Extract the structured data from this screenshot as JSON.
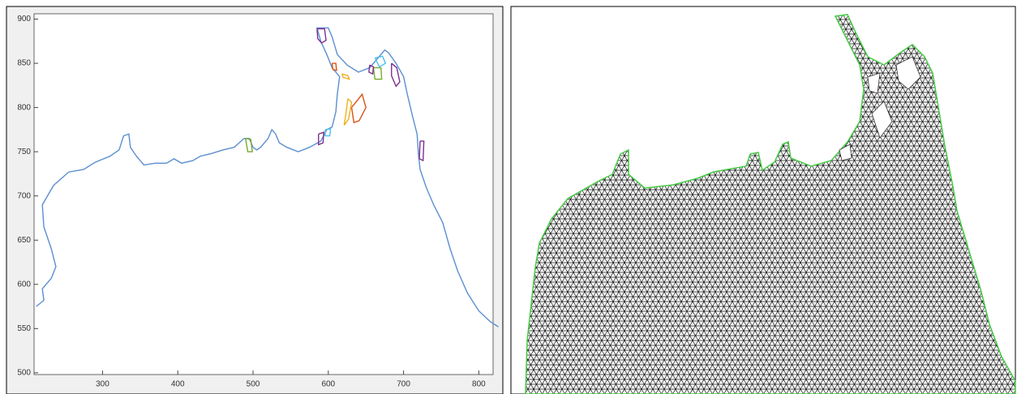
{
  "chart_data": {
    "type": "line",
    "xlim": [
      209,
      819
    ],
    "ylim": [
      498,
      906
    ],
    "xticks": [
      300,
      400,
      500,
      600,
      700,
      800
    ],
    "yticks": [
      500,
      550,
      600,
      650,
      700,
      750,
      800,
      850,
      900
    ],
    "series": [
      {
        "color": "#5b8fd1",
        "x": [
          212,
          222,
          220,
          232,
          238,
          232,
          222,
          220,
          235,
          255,
          275,
          290,
          310,
          322,
          328,
          335,
          337,
          345,
          355,
          370,
          385,
          395,
          405,
          420,
          430,
          445,
          460,
          475,
          488,
          495,
          500,
          505,
          510,
          520,
          525,
          530,
          535,
          545,
          560,
          575,
          590,
          598,
          605,
          610,
          612,
          615,
          605,
          598,
          590,
          585,
          600,
          605,
          612,
          625,
          640,
          655,
          665,
          675,
          680,
          690,
          700,
          705,
          712,
          718,
          720,
          722,
          730,
          740,
          752,
          762,
          772,
          785,
          800,
          815,
          826
        ],
        "values": [
          575,
          582,
          595,
          607,
          620,
          640,
          665,
          690,
          712,
          727,
          730,
          738,
          745,
          752,
          768,
          770,
          755,
          745,
          735,
          737,
          737,
          742,
          737,
          740,
          745,
          748,
          752,
          755,
          765,
          765,
          755,
          752,
          755,
          765,
          775,
          770,
          760,
          755,
          750,
          755,
          762,
          775,
          778,
          795,
          815,
          835,
          845,
          860,
          875,
          890,
          890,
          880,
          860,
          848,
          840,
          845,
          855,
          865,
          862,
          850,
          835,
          815,
          790,
          770,
          745,
          730,
          710,
          690,
          670,
          640,
          615,
          590,
          570,
          558,
          552
        ]
      },
      {
        "color": "#7e2f8e",
        "x": [
          585,
          595,
          597,
          591,
          586,
          585
        ],
        "values": [
          889,
          889,
          876,
          873,
          878,
          889
        ]
      },
      {
        "color": "#d95319",
        "x": [
          631,
          645,
          650,
          641,
          634,
          631
        ],
        "values": [
          800,
          815,
          800,
          785,
          783,
          800
        ]
      },
      {
        "color": "#edb120",
        "x": [
          626,
          631,
          627,
          621,
          623,
          626
        ],
        "values": [
          810,
          806,
          787,
          780,
          790,
          810
        ]
      },
      {
        "color": "#edb120",
        "x": [
          618,
          626,
          628,
          620,
          618
        ],
        "values": [
          838,
          836,
          832,
          834,
          838
        ]
      },
      {
        "color": "#d95319",
        "x": [
          605,
          610,
          611,
          606,
          605
        ],
        "values": [
          850,
          850,
          842,
          843,
          850
        ]
      },
      {
        "color": "#7e2f8e",
        "x": [
          684,
          691,
          695,
          690,
          684,
          684
        ],
        "values": [
          850,
          845,
          829,
          824,
          836,
          850
        ]
      },
      {
        "color": "#4dbeee",
        "x": [
          662,
          672,
          676,
          668,
          662
        ],
        "values": [
          856,
          858,
          850,
          846,
          856
        ]
      },
      {
        "color": "#77ac30",
        "x": [
          660,
          670,
          671,
          662,
          660
        ],
        "values": [
          845,
          845,
          832,
          832,
          845
        ]
      },
      {
        "color": "#7e2f8e",
        "x": [
          655,
          660,
          659,
          654,
          655
        ],
        "values": [
          848,
          846,
          838,
          840,
          848
        ]
      },
      {
        "color": "#4dbeee",
        "x": [
          596,
          603,
          602,
          596,
          596
        ],
        "values": [
          775,
          776,
          768,
          768,
          775
        ]
      },
      {
        "color": "#7e2f8e",
        "x": [
          587,
          594,
          593,
          587,
          587
        ],
        "values": [
          770,
          772,
          760,
          758,
          770
        ]
      },
      {
        "color": "#77ac30",
        "x": [
          490,
          497,
          499,
          493,
          490
        ],
        "values": [
          765,
          764,
          750,
          750,
          765
        ]
      },
      {
        "color": "#7e2f8e",
        "x": [
          722,
          727,
          726,
          721,
          722
        ],
        "values": [
          762,
          762,
          740,
          742,
          762
        ]
      }
    ]
  }
}
